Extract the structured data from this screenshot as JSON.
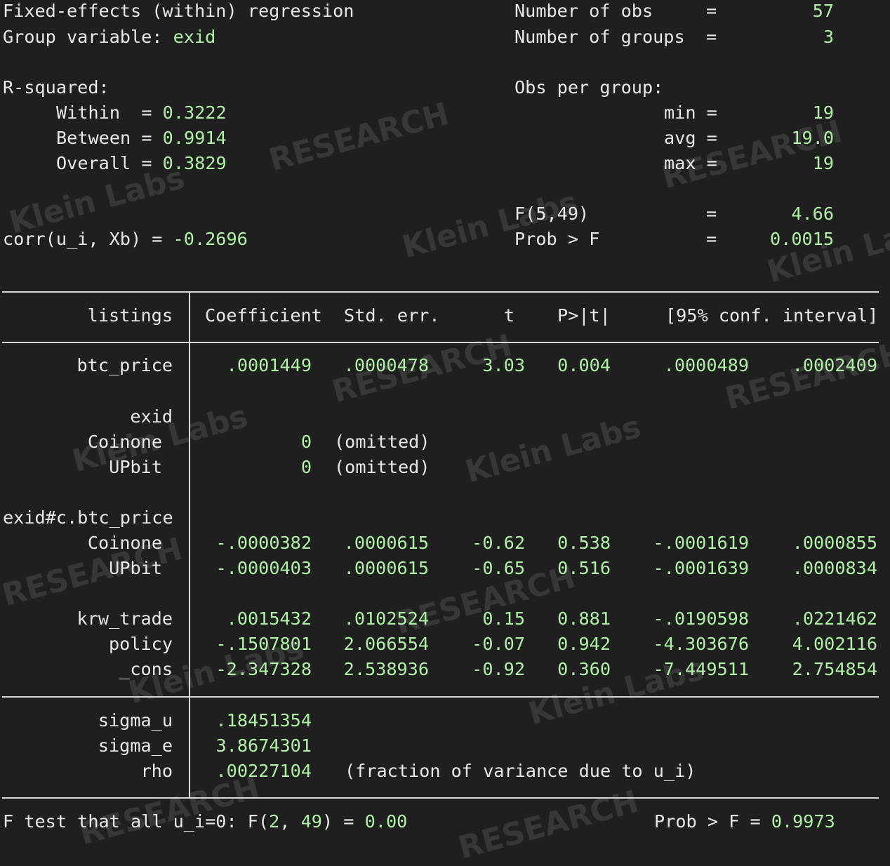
{
  "header": {
    "title": "Fixed-effects (within) regression",
    "group_label": "Group variable: ",
    "group_var": "exid",
    "rsq_label": "R-squared:",
    "within_label": "Within  = ",
    "within": "0.3222",
    "between_label": "Between = ",
    "between": "0.9914",
    "overall_label": "Overall = ",
    "overall": "0.3829",
    "corr_label": "corr(u_i, Xb) = ",
    "corr": "-0.2696",
    "nobs_label": "Number of obs",
    "nobs": "57",
    "ngroups_label": "Number of groups",
    "ngroups": "3",
    "eq": "=",
    "obs_per_group_label": "Obs per group:",
    "min_label": "min =",
    "min": "19",
    "avg_label": "avg =",
    "avg": "19.0",
    "max_label": "max =",
    "max": "19",
    "f_label": "F(5,49)",
    "f": "4.66",
    "probf_label": "Prob > F",
    "probf": "0.0015"
  },
  "table": {
    "headers": {
      "depvar": "listings",
      "coef": "Coefficient",
      "se": "Std. err.",
      "t": "t",
      "p": "P>|t|",
      "ci": "[95% conf. interval]"
    },
    "rows": [
      {
        "label": "btc_price",
        "coef": ".0001449",
        "se": ".0000478",
        "t": "3.03",
        "p": "0.004",
        "lo": ".0000489",
        "hi": ".0002409"
      },
      {
        "label": "exid"
      },
      {
        "label": "Coinone",
        "coef": "0",
        "note": "(omitted)"
      },
      {
        "label": "UPbit",
        "coef": "0",
        "note": "(omitted)"
      },
      {
        "label": "exid#c.btc_price"
      },
      {
        "label": "Coinone",
        "coef": "-.0000382",
        "se": ".0000615",
        "t": "-0.62",
        "p": "0.538",
        "lo": "-.0001619",
        "hi": ".0000855"
      },
      {
        "label": "UPbit",
        "coef": "-.0000403",
        "se": ".0000615",
        "t": "-0.65",
        "p": "0.516",
        "lo": "-.0001639",
        "hi": ".0000834"
      },
      {
        "label": "krw_trade",
        "coef": ".0015432",
        "se": ".0102524",
        "t": "0.15",
        "p": "0.881",
        "lo": "-.0190598",
        "hi": ".0221462"
      },
      {
        "label": "policy",
        "coef": "-.1507801",
        "se": "2.066554",
        "t": "-0.07",
        "p": "0.942",
        "lo": "-4.303676",
        "hi": "4.002116"
      },
      {
        "label": "_cons",
        "coef": "-2.347328",
        "se": "2.538936",
        "t": "-0.92",
        "p": "0.360",
        "lo": "-7.449511",
        "hi": "2.754854"
      }
    ],
    "sigma_u_label": "sigma_u",
    "sigma_u": ".18451354",
    "sigma_e_label": "sigma_e",
    "sigma_e": "3.8674301",
    "rho_label": "rho",
    "rho": ".00227104",
    "rho_note": "(fraction of variance due to u_i)"
  },
  "ftest": {
    "prefix": "F test that all u_i=0: F(",
    "df1": "2",
    "sep": ", ",
    "df2": "49",
    "mid": ") = ",
    "value": "0.00",
    "prob_label": "Prob > F = ",
    "prob": "0.9973"
  },
  "watermarks": {
    "a": "Klein Labs",
    "b": "RESEARCH"
  },
  "colors": {
    "background": "#1f1f1f",
    "text": "#e8e8e8",
    "value": "#aef0a4"
  }
}
